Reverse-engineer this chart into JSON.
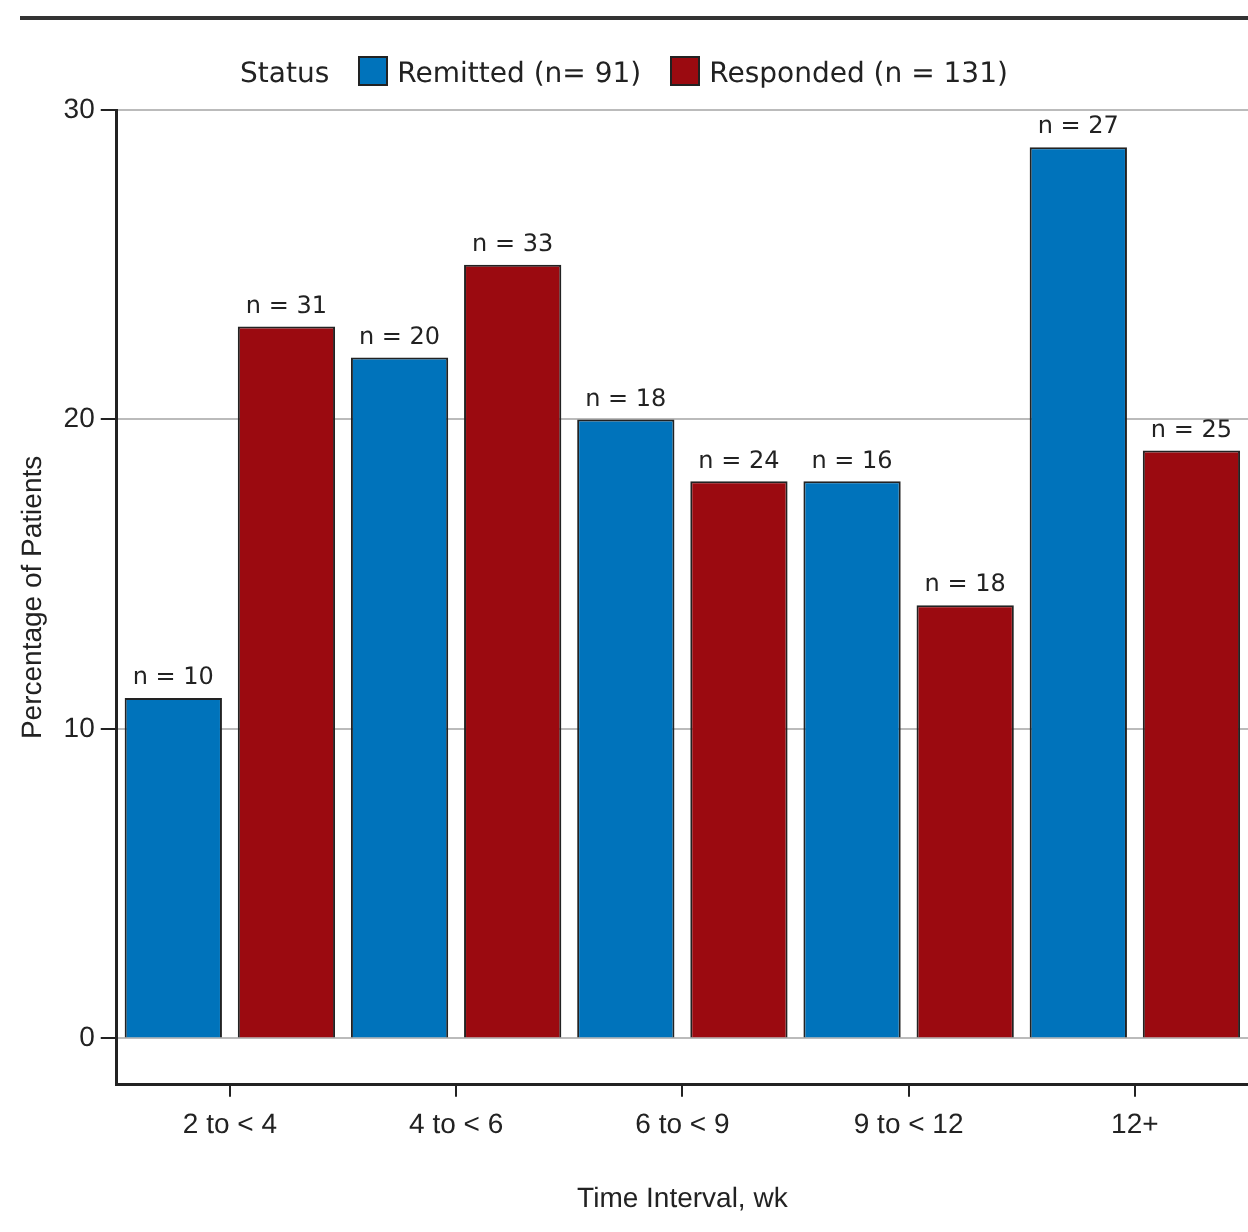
{
  "chart_data": {
    "type": "bar",
    "xlabel": "Time Interval, wk",
    "ylabel": "Percentage of Patients",
    "legend_title": "Status",
    "legend": "top",
    "grid": "y",
    "categories": [
      "2 to < 4",
      "4 to < 6",
      "6 to < 9",
      "9 to < 12",
      "12+"
    ],
    "series": [
      {
        "name": "Remitted (n= 91)",
        "color": "#0073bb",
        "values": [
          11,
          22,
          20,
          18,
          28.8
        ]
      },
      {
        "name": "Responded (n = 131)",
        "color": "#9b0a10",
        "values": [
          23,
          25,
          18,
          14,
          19
        ]
      }
    ],
    "annotations": [
      "n = 10",
      "n = 20",
      "n = 18",
      "n = 16",
      "n = 27",
      "n = 31",
      "n = 33",
      "n = 24",
      "n = 18",
      "n = 25"
    ],
    "ylim": [
      -1.5,
      30
    ],
    "yticks": [
      0,
      10,
      20,
      30
    ]
  }
}
